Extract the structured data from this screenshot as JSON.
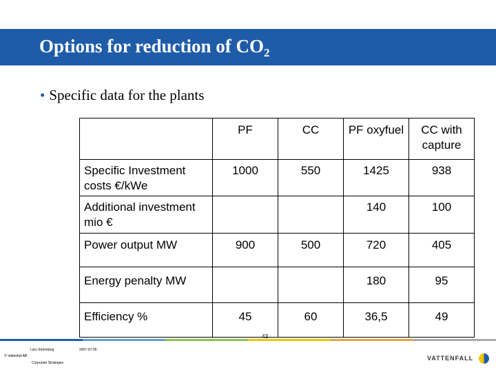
{
  "slide": {
    "title": "Options for reduction of CO",
    "title_subscript": "2",
    "bullet": "Specific data for the plants"
  },
  "table": {
    "columns": [
      "PF",
      "CC",
      "PF oxyfuel",
      "CC with capture"
    ],
    "rows": [
      {
        "label": "Specific Investment costs €/kWe",
        "values": [
          "1000",
          "550",
          "1425",
          "938"
        ]
      },
      {
        "label": "Additional investment mio €",
        "values": [
          "",
          "",
          "140",
          "100"
        ]
      },
      {
        "label": "Power output MW",
        "values": [
          "900",
          "500",
          "720",
          "405"
        ]
      },
      {
        "label": "Energy penalty MW",
        "values": [
          "",
          "",
          "180",
          "95"
        ]
      },
      {
        "label": "Efficiency %",
        "values": [
          "45",
          "60",
          "36,5",
          "49"
        ]
      }
    ]
  },
  "footer": {
    "author": "Lars Strömberg",
    "date": "2007-07-05",
    "copyright": "© Vattenfall AB",
    "department": "Corporate Strategies",
    "page_number": "43",
    "logo_text": "VATTENFALL"
  },
  "colors": {
    "title_bar": "#1f5ca8",
    "strip": [
      "#1f5ca8",
      "#5b9bd5",
      "#8dc63f",
      "#f5c400",
      "#e8a33d",
      "#aaaaaa"
    ]
  }
}
